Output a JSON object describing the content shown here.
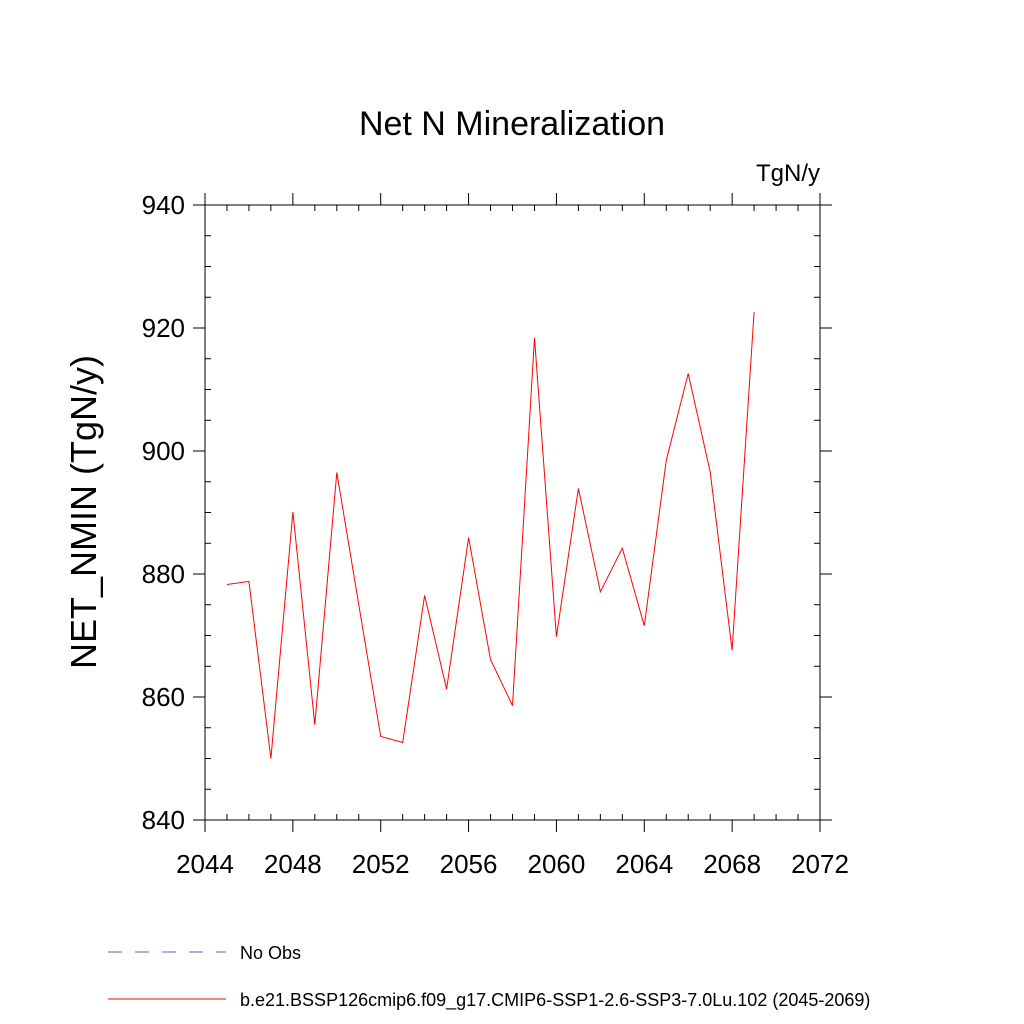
{
  "chart_data": {
    "type": "line",
    "title": "Net N Mineralization",
    "units_label": "TgN/y",
    "ylabel": "NET_NMIN  (TgN/y)",
    "xlabel": "",
    "xlim": [
      2044,
      2072
    ],
    "ylim": [
      840,
      940
    ],
    "x_ticks": [
      2044,
      2048,
      2052,
      2056,
      2060,
      2064,
      2068,
      2072
    ],
    "y_ticks": [
      840,
      860,
      880,
      900,
      920,
      940
    ],
    "grid": false,
    "legend_position": "bottom",
    "series": [
      {
        "name": "b.e21.BSSP126cmip6.f09_g17.CMIP6-SSP1-2.6-SSP3-7.0Lu.102 (2045-2069)",
        "color": "#ff0000",
        "x": [
          2045,
          2046,
          2047,
          2048,
          2049,
          2050,
          2051,
          2052,
          2053,
          2054,
          2055,
          2056,
          2057,
          2058,
          2059,
          2060,
          2061,
          2062,
          2063,
          2064,
          2065,
          2066,
          2067,
          2068,
          2069
        ],
        "values": [
          878.3,
          878.8,
          850.0,
          890.1,
          855.5,
          896.5,
          875.0,
          853.6,
          852.6,
          876.5,
          861.3,
          885.9,
          866.1,
          858.6,
          918.4,
          869.8,
          893.9,
          877.1,
          884.2,
          871.6,
          898.5,
          912.6,
          896.6,
          867.6,
          922.6
        ]
      }
    ],
    "legend": [
      {
        "label": "No Obs",
        "color": "#6a5acd",
        "style": "dashed"
      },
      {
        "label": "b.e21.BSSP126cmip6.f09_g17.CMIP6-SSP1-2.6-SSP3-7.0Lu.102 (2045-2069)",
        "color": "#ff0000",
        "style": "solid"
      }
    ]
  }
}
